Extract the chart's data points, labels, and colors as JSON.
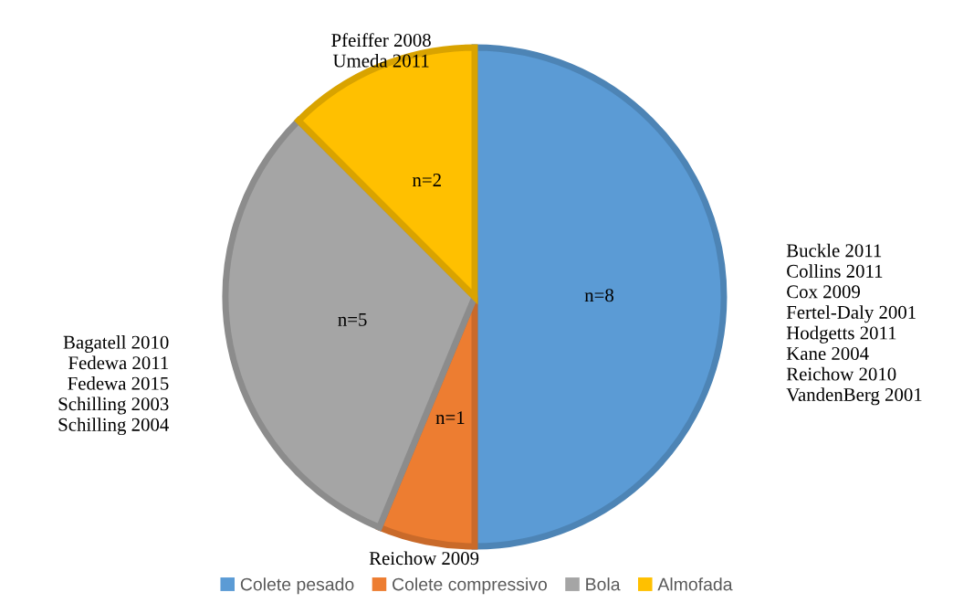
{
  "chart_data": {
    "type": "pie",
    "categories": [
      "Colete pesado",
      "Colete compressivo",
      "Bola",
      "Almofada"
    ],
    "values": [
      8,
      1,
      5,
      2
    ],
    "colors": [
      "#5b9bd5",
      "#ed7d31",
      "#a5a5a5",
      "#ffc000"
    ],
    "value_labels": [
      "n=8",
      "n=1",
      "n=5",
      "n=2"
    ],
    "legend": "bottom",
    "annotations": [
      "Buckle 2011\nCollins 2011\nCox 2009\nFertel-Daly 2001\nHodgetts 2011\nKane 2004\nReichow 2010\nVandenBerg 2001",
      "Reichow 2009",
      "Bagatell 2010\nFedewa 2011\nFedewa 2015\nSchilling 2003\nSchilling 2004",
      "Pfeiffer 2008\nUmeda 2011"
    ]
  }
}
